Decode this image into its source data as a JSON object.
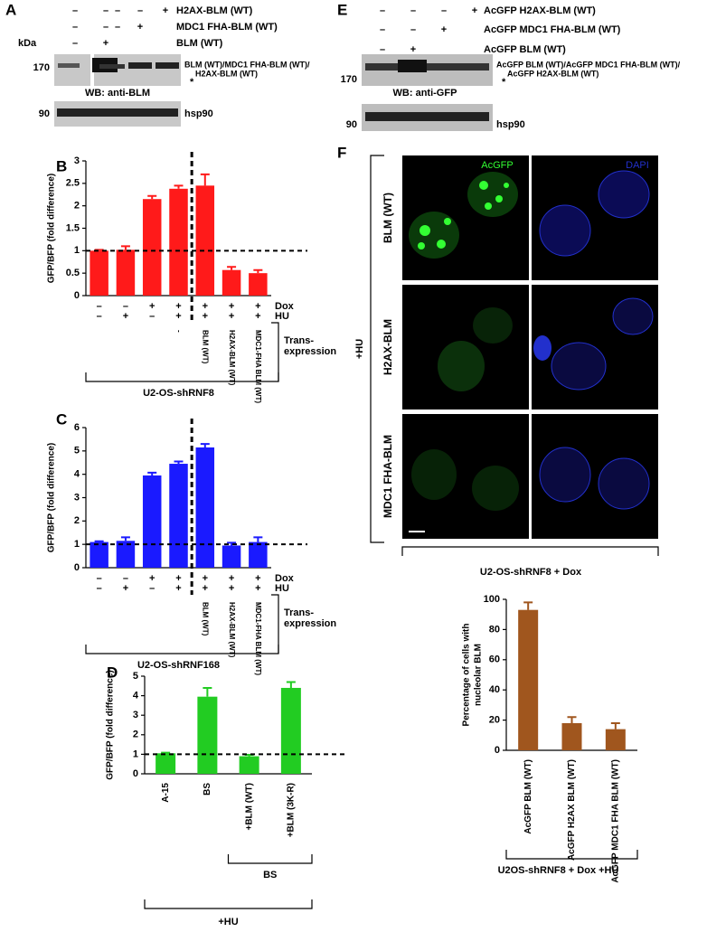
{
  "panel_a": {
    "panel": "A",
    "treatments": [
      {
        "name": "H2AX-BLM (WT)",
        "signs": [
          "–",
          "–",
          "–",
          "–",
          "+"
        ]
      },
      {
        "name": "MDC1 FHA-BLM (WT)",
        "signs": [
          "–",
          "–",
          "–",
          "+",
          null
        ]
      },
      {
        "name": "BLM (WT)",
        "signs": [
          "–",
          "+",
          null,
          null,
          null
        ]
      }
    ],
    "kda": "kDa",
    "markers": [
      "170",
      "90"
    ],
    "band_labels": [
      "BLM (WT)/MDC1 FHA-BLM (WT)/",
      "H2AX-BLM (WT)"
    ],
    "asterisk": "*",
    "blot": "WB: anti-BLM",
    "loading_control": "hsp90"
  },
  "panel_e": {
    "panel": "E",
    "treatments": [
      {
        "name": "AcGFP H2AX-BLM (WT)",
        "signs": [
          "–",
          "–",
          "–",
          "+"
        ]
      },
      {
        "name": "AcGFP MDC1 FHA-BLM (WT)",
        "signs": [
          "–",
          "–",
          "+",
          null
        ]
      },
      {
        "name": "AcGFP BLM (WT)",
        "signs": [
          "–",
          "+",
          null,
          null
        ]
      }
    ],
    "markers": [
      "170",
      "90"
    ],
    "band_labels": [
      "AcGFP BLM (WT)/AcGFP MDC1 FHA-BLM (WT)/",
      "AcGFP H2AX-BLM (WT)"
    ],
    "asterisk": "*",
    "blot": "WB: anti-GFP",
    "loading_control": "hsp90"
  },
  "panel_f": {
    "panel": "F",
    "channels": [
      "AcGFP",
      "DAPI"
    ],
    "rows": [
      "BLM (WT)",
      "H2AX-BLM",
      "MDC1 FHA-BLM"
    ],
    "treatment": "+HU",
    "footer": "U2-OS-shRNF8 + Dox"
  },
  "chart_data": [
    {
      "type": "bar",
      "panel": "B",
      "ylabel": "GFP/BFP (fold difference)",
      "categories": [
        null,
        null,
        null,
        "-",
        "BLM (WT)",
        "H2AX-BLM (WT)",
        "MDC1-FHA BLM (WT)"
      ],
      "values": [
        1.0,
        1.02,
        2.15,
        2.38,
        2.45,
        0.57,
        0.5
      ],
      "errors": [
        0.02,
        0.08,
        0.07,
        0.07,
        0.25,
        0.07,
        0.07
      ],
      "color": "#ff1a1a",
      "ylim": [
        0,
        3
      ],
      "yticks": [
        0,
        0.5,
        1,
        1.5,
        2,
        2.5,
        3
      ],
      "reference_line": 1,
      "conditions": [
        {
          "name": "Dox",
          "signs": [
            "–",
            "–",
            "+",
            "+",
            "+",
            "+",
            "+"
          ]
        },
        {
          "name": "HU",
          "signs": [
            "–",
            "+",
            "–",
            "+",
            "+",
            "+",
            "+"
          ]
        }
      ],
      "category_label": [
        "Trans-",
        "expression"
      ],
      "footer": "U2-OS-shRNF8"
    },
    {
      "type": "bar",
      "panel": "C",
      "ylabel": "GFP/BFP (fold difference)",
      "categories": [
        null,
        null,
        null,
        null,
        "BLM (WT)",
        "H2AX-BLM (WT)",
        "MDC1-FHA BLM (WT)"
      ],
      "values": [
        1.1,
        1.15,
        3.95,
        4.45,
        5.15,
        0.95,
        1.1
      ],
      "errors": [
        0.03,
        0.15,
        0.12,
        0.1,
        0.15,
        0.12,
        0.2
      ],
      "color": "#1a1aff",
      "ylim": [
        0,
        6
      ],
      "yticks": [
        0,
        1,
        2,
        3,
        4,
        5,
        6
      ],
      "reference_line": 1,
      "conditions": [
        {
          "name": "Dox",
          "signs": [
            "–",
            "–",
            "+",
            "+",
            "+",
            "+",
            "+"
          ]
        },
        {
          "name": "HU",
          "signs": [
            "–",
            "+",
            "–",
            "+",
            "+",
            "+",
            "+"
          ]
        }
      ],
      "category_label": [
        "Trans-",
        "expression"
      ],
      "footer": "U2-OS-shRNF168"
    },
    {
      "type": "bar",
      "panel": "D",
      "ylabel": "GFP/BFP (fold difference)",
      "categories": [
        "A-15",
        "BS",
        "+BLM (WT)",
        "+BLM (3K-R)"
      ],
      "values": [
        1.05,
        3.95,
        0.9,
        4.4
      ],
      "errors": [
        0.03,
        0.45,
        0.07,
        0.3
      ],
      "color": "#22cc22",
      "ylim": [
        0,
        5
      ],
      "yticks": [
        0,
        1,
        2,
        3,
        4,
        5
      ],
      "reference_line": 1,
      "bracket_labels": [
        "BS",
        "+HU"
      ]
    },
    {
      "type": "bar",
      "ylabel": [
        "Percentage of cells with",
        "nucleolar BLM"
      ],
      "categories": [
        "AcGFP BLM (WT)",
        "AcGFP H2AX BLM (WT)",
        "AcGFP MDC1 FHA BLM (WT)"
      ],
      "values": [
        93,
        18,
        14
      ],
      "errors": [
        5,
        4,
        4
      ],
      "color": "#a0561e",
      "ylim": [
        0,
        100
      ],
      "yticks": [
        0,
        20,
        40,
        60,
        80,
        100
      ],
      "footer": "U2OS-shRNF8 + Dox +HU"
    }
  ]
}
